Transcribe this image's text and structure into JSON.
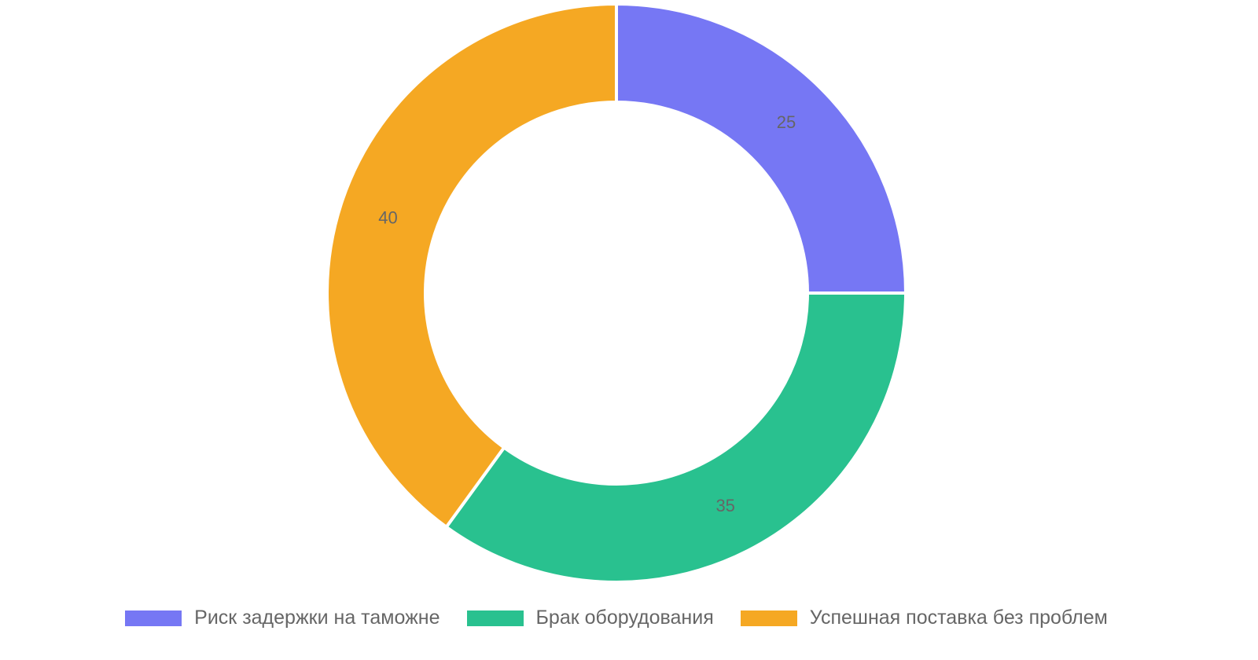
{
  "chart_data": {
    "type": "donut",
    "categories": [
      "Риск задержки на таможне",
      "Брак оборудования",
      "Успешная поставка без проблем"
    ],
    "values": [
      25,
      35,
      40
    ],
    "colors": [
      "#7677f4",
      "#29c18f",
      "#f5a823"
    ],
    "legend": "bottom"
  }
}
